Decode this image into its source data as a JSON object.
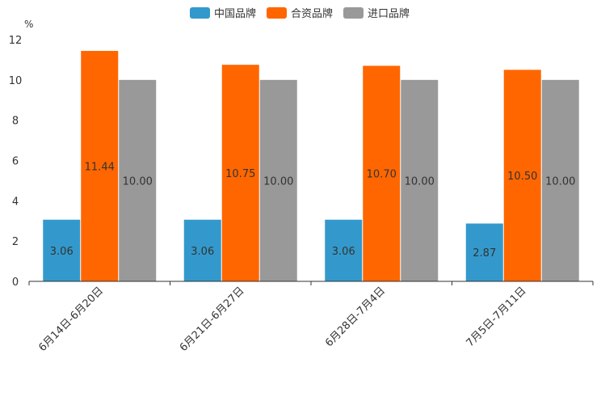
{
  "chart_data": {
    "type": "bar",
    "title": "",
    "xlabel": "",
    "ylabel": "%",
    "ylim": [
      0,
      12
    ],
    "yticks": [
      0,
      2,
      4,
      6,
      8,
      10,
      12
    ],
    "grid": false,
    "legend_position": "top-center",
    "categories": [
      "6月14日-6月20日",
      "6月21日-6月27日",
      "6月28日-7月4日",
      "7月5日-7月11日"
    ],
    "series": [
      {
        "name": "中国品牌",
        "color": "#3399cc",
        "values": [
          3.06,
          3.06,
          3.06,
          2.87
        ]
      },
      {
        "name": "合资品牌",
        "color": "#ff6600",
        "values": [
          11.44,
          10.75,
          10.7,
          10.5
        ]
      },
      {
        "name": "进口品牌",
        "color": "#999999",
        "values": [
          10.0,
          10.0,
          10.0,
          10.0
        ]
      }
    ]
  }
}
